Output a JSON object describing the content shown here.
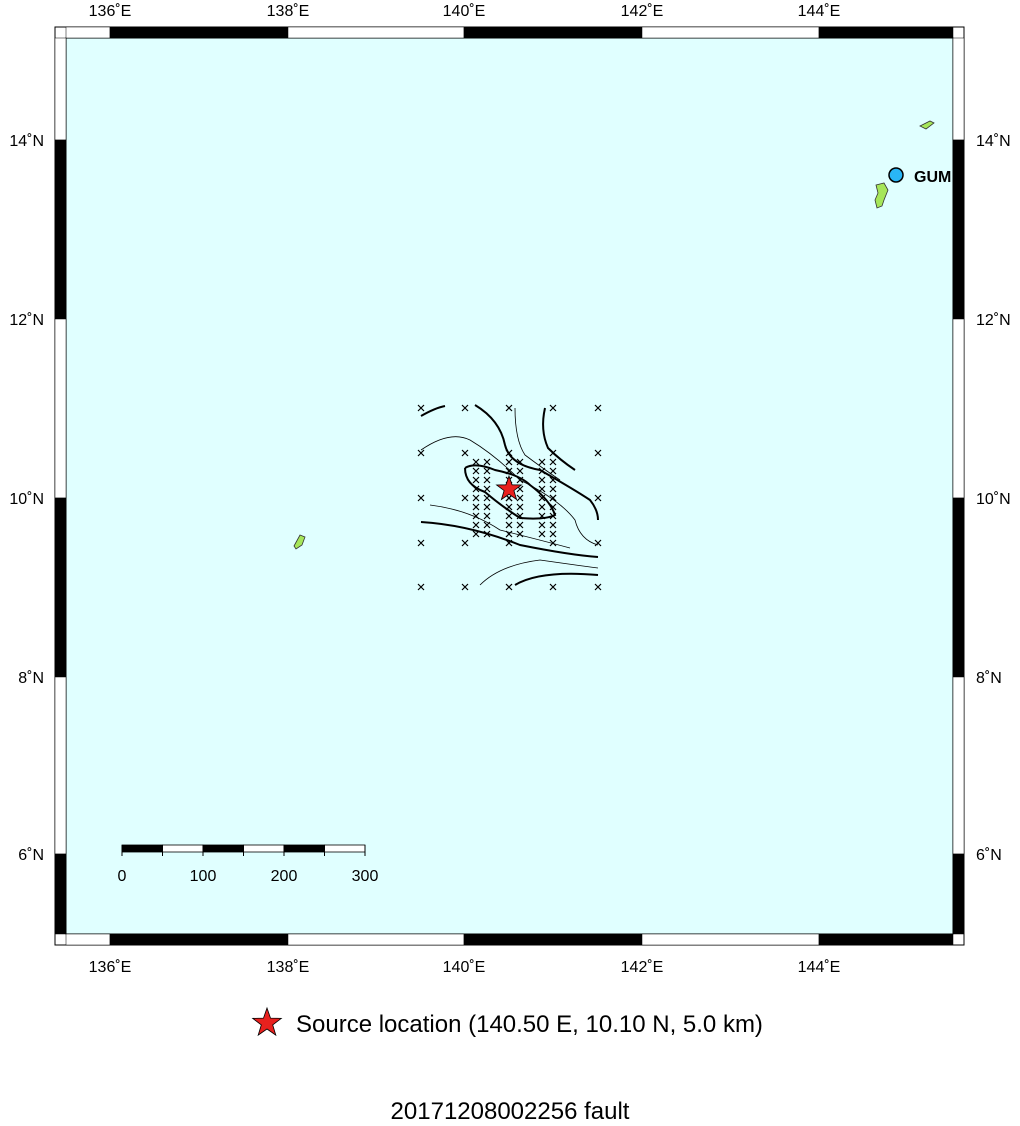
{
  "map": {
    "lon_labels": [
      "136˚E",
      "138˚E",
      "140˚E",
      "142˚E",
      "144˚E"
    ],
    "lat_labels": [
      "14˚N",
      "12˚N",
      "10˚N",
      "8˚N",
      "6˚N"
    ],
    "station": "GUM",
    "scale_labels": [
      "0",
      "100",
      "200",
      "300"
    ]
  },
  "legend": "Source location (140.50 E, 10.10 N, 5.0 km)",
  "title": "20171208002256 fault"
}
